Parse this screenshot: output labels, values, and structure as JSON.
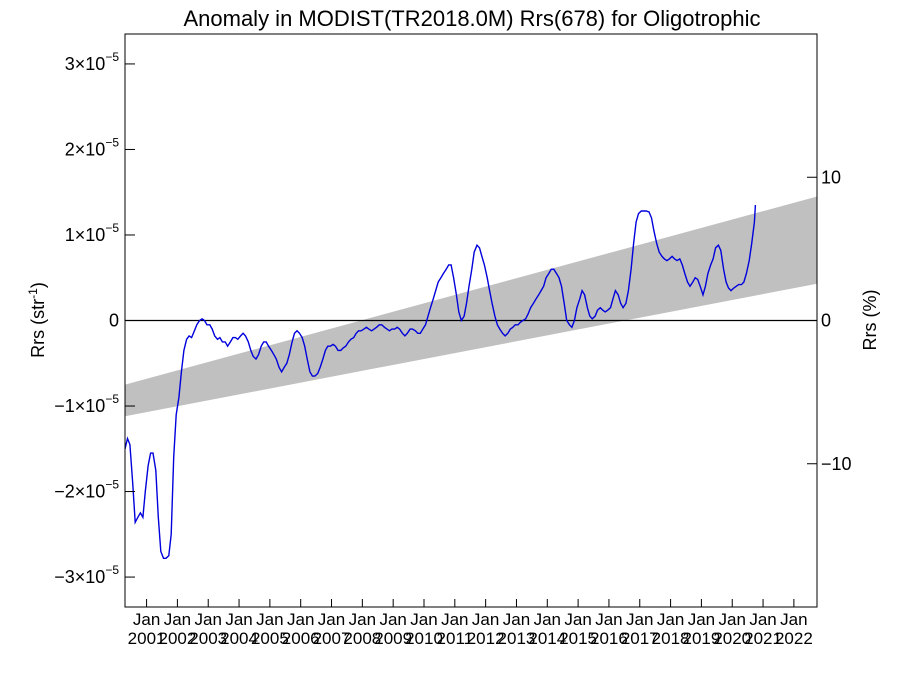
{
  "chart_data": {
    "type": "line",
    "title": "Anomaly in MODIST(TR2018.0M) Rrs(678) for Oligotrophic",
    "ylabel_left": "Rrs (str",
    "ylabel_left_sup": "-1",
    "ylabel_left_close": ")",
    "ylabel_right": "Rrs (%)",
    "xlim": [
      2000.3,
      2022.75
    ],
    "ylim": [
      -3.35e-05,
      3.35e-05
    ],
    "y2lim": [
      -20.0,
      20.0
    ],
    "yticks": [
      {
        "value": 3e-05,
        "mant": "3×10",
        "exp": "−5"
      },
      {
        "value": 2e-05,
        "mant": "2×10",
        "exp": "−5"
      },
      {
        "value": 1e-05,
        "mant": "1×10",
        "exp": "−5"
      },
      {
        "value": 0,
        "mant": "0",
        "exp": ""
      },
      {
        "value": -1e-05,
        "mant": "−1×10",
        "exp": "−5"
      },
      {
        "value": -2e-05,
        "mant": "−2×10",
        "exp": "−5"
      },
      {
        "value": -3e-05,
        "mant": "−3×10",
        "exp": "−5"
      }
    ],
    "y2ticks": [
      {
        "value": 10,
        "label": "10"
      },
      {
        "value": 0,
        "label": "0"
      },
      {
        "value": -10,
        "label": "−10"
      }
    ],
    "xticks": [
      {
        "x": 2001,
        "month": "Jan",
        "year": "2001"
      },
      {
        "x": 2002,
        "month": "Jan",
        "year": "2002"
      },
      {
        "x": 2003,
        "month": "Jan",
        "year": "2003"
      },
      {
        "x": 2004,
        "month": "Jan",
        "year": "2004"
      },
      {
        "x": 2005,
        "month": "Jan",
        "year": "2005"
      },
      {
        "x": 2006,
        "month": "Jan",
        "year": "2006"
      },
      {
        "x": 2007,
        "month": "Jan",
        "year": "2007"
      },
      {
        "x": 2008,
        "month": "Jan",
        "year": "2008"
      },
      {
        "x": 2009,
        "month": "Jan",
        "year": "2009"
      },
      {
        "x": 2010,
        "month": "Jan",
        "year": "2010"
      },
      {
        "x": 2011,
        "month": "Jan",
        "year": "2011"
      },
      {
        "x": 2012,
        "month": "Jan",
        "year": "2012"
      },
      {
        "x": 2013,
        "month": "Jan",
        "year": "2013"
      },
      {
        "x": 2014,
        "month": "Jan",
        "year": "2014"
      },
      {
        "x": 2015,
        "month": "Jan",
        "year": "2015"
      },
      {
        "x": 2016,
        "month": "Jan",
        "year": "2016"
      },
      {
        "x": 2017,
        "month": "Jan",
        "year": "2017"
      },
      {
        "x": 2018,
        "month": "Jan",
        "year": "2018"
      },
      {
        "x": 2019,
        "month": "Jan",
        "year": "2019"
      },
      {
        "x": 2020,
        "month": "Jan",
        "year": "2020"
      },
      {
        "x": 2021,
        "month": "Jan",
        "year": "2021"
      },
      {
        "x": 2022,
        "month": "Jan",
        "year": "2022"
      }
    ],
    "trend_band": {
      "x": [
        2000.3,
        2022.75
      ],
      "upper": [
        -7.5e-06,
        1.45e-05
      ],
      "lower": [
        -1.12e-05,
        4.3e-06
      ],
      "color": "#c0c0c0"
    },
    "zero_line": true,
    "series": [
      {
        "color": "#0000dd",
        "points": [
          [
            2000.3,
            -1.5e-05
          ],
          [
            2000.38,
            -1.38e-05
          ],
          [
            2000.46,
            -1.45e-05
          ],
          [
            2000.55,
            -1.9e-05
          ],
          [
            2000.63,
            -2.36e-05
          ],
          [
            2000.72,
            -2.3e-05
          ],
          [
            2000.8,
            -2.25e-05
          ],
          [
            2000.88,
            -2.3e-05
          ],
          [
            2000.96,
            -2e-05
          ],
          [
            2001.05,
            -1.7e-05
          ],
          [
            2001.13,
            -1.55e-05
          ],
          [
            2001.21,
            -1.55e-05
          ],
          [
            2001.3,
            -1.75e-05
          ],
          [
            2001.38,
            -2.3e-05
          ],
          [
            2001.46,
            -2.7e-05
          ],
          [
            2001.55,
            -2.78e-05
          ],
          [
            2001.63,
            -2.78e-05
          ],
          [
            2001.72,
            -2.75e-05
          ],
          [
            2001.8,
            -2.5e-05
          ],
          [
            2001.88,
            -1.6e-05
          ],
          [
            2001.96,
            -1.1e-05
          ],
          [
            2002.05,
            -9e-06
          ],
          [
            2002.13,
            -6e-06
          ],
          [
            2002.21,
            -3.5e-06
          ],
          [
            2002.3,
            -2.2e-06
          ],
          [
            2002.38,
            -1.8e-06
          ],
          [
            2002.46,
            -2e-06
          ],
          [
            2002.55,
            -1.2e-06
          ],
          [
            2002.63,
            -5e-07
          ],
          [
            2002.72,
            0.0
          ],
          [
            2002.8,
            2e-07
          ],
          [
            2002.88,
            0.0
          ],
          [
            2002.96,
            -5e-07
          ],
          [
            2003.05,
            -5e-07
          ],
          [
            2003.13,
            -1e-06
          ],
          [
            2003.21,
            -1.8e-06
          ],
          [
            2003.3,
            -2.2e-06
          ],
          [
            2003.38,
            -2e-06
          ],
          [
            2003.46,
            -2.5e-06
          ],
          [
            2003.55,
            -2.5e-06
          ],
          [
            2003.63,
            -3e-06
          ],
          [
            2003.72,
            -2.5e-06
          ],
          [
            2003.8,
            -2e-06
          ],
          [
            2003.88,
            -2e-06
          ],
          [
            2003.96,
            -2.2e-06
          ],
          [
            2004.05,
            -1.8e-06
          ],
          [
            2004.13,
            -1.5e-06
          ],
          [
            2004.21,
            -1.8e-06
          ],
          [
            2004.3,
            -2.5e-06
          ],
          [
            2004.38,
            -3.5e-06
          ],
          [
            2004.46,
            -4.2e-06
          ],
          [
            2004.55,
            -4.5e-06
          ],
          [
            2004.63,
            -4e-06
          ],
          [
            2004.72,
            -3e-06
          ],
          [
            2004.8,
            -2.5e-06
          ],
          [
            2004.88,
            -2.5e-06
          ],
          [
            2004.96,
            -3e-06
          ],
          [
            2005.05,
            -3.5e-06
          ],
          [
            2005.13,
            -4e-06
          ],
          [
            2005.21,
            -4.5e-06
          ],
          [
            2005.3,
            -5.5e-06
          ],
          [
            2005.38,
            -6e-06
          ],
          [
            2005.46,
            -5.5e-06
          ],
          [
            2005.55,
            -5e-06
          ],
          [
            2005.63,
            -4e-06
          ],
          [
            2005.72,
            -2.5e-06
          ],
          [
            2005.8,
            -1.5e-06
          ],
          [
            2005.88,
            -1.2e-06
          ],
          [
            2005.96,
            -1.5e-06
          ],
          [
            2006.05,
            -2e-06
          ],
          [
            2006.13,
            -3e-06
          ],
          [
            2006.21,
            -4.5e-06
          ],
          [
            2006.3,
            -6e-06
          ],
          [
            2006.38,
            -6.5e-06
          ],
          [
            2006.46,
            -6.5e-06
          ],
          [
            2006.55,
            -6.2e-06
          ],
          [
            2006.63,
            -5.5e-06
          ],
          [
            2006.72,
            -4.5e-06
          ],
          [
            2006.8,
            -3.5e-06
          ],
          [
            2006.88,
            -3e-06
          ],
          [
            2006.96,
            -3e-06
          ],
          [
            2007.05,
            -2.8e-06
          ],
          [
            2007.13,
            -3e-06
          ],
          [
            2007.21,
            -3.5e-06
          ],
          [
            2007.3,
            -3.5e-06
          ],
          [
            2007.38,
            -3.2e-06
          ],
          [
            2007.46,
            -3e-06
          ],
          [
            2007.55,
            -2.5e-06
          ],
          [
            2007.63,
            -2.2e-06
          ],
          [
            2007.72,
            -2e-06
          ],
          [
            2007.8,
            -1.5e-06
          ],
          [
            2007.88,
            -1.2e-06
          ],
          [
            2007.96,
            -1.2e-06
          ],
          [
            2008.05,
            -1e-06
          ],
          [
            2008.13,
            -8e-07
          ],
          [
            2008.21,
            -1e-06
          ],
          [
            2008.3,
            -1.2e-06
          ],
          [
            2008.38,
            -1e-06
          ],
          [
            2008.46,
            -8e-07
          ],
          [
            2008.55,
            -5e-07
          ],
          [
            2008.63,
            -5e-07
          ],
          [
            2008.72,
            -8e-07
          ],
          [
            2008.8,
            -1e-06
          ],
          [
            2008.88,
            -1.2e-06
          ],
          [
            2008.96,
            -1e-06
          ],
          [
            2009.05,
            -1e-06
          ],
          [
            2009.13,
            -8e-07
          ],
          [
            2009.21,
            -1e-06
          ],
          [
            2009.3,
            -1.5e-06
          ],
          [
            2009.38,
            -1.8e-06
          ],
          [
            2009.46,
            -1.5e-06
          ],
          [
            2009.55,
            -1e-06
          ],
          [
            2009.63,
            -1e-06
          ],
          [
            2009.72,
            -1.2e-06
          ],
          [
            2009.8,
            -1.5e-06
          ],
          [
            2009.88,
            -1.5e-06
          ],
          [
            2009.96,
            -1e-06
          ],
          [
            2010.05,
            -5e-07
          ],
          [
            2010.13,
            5e-07
          ],
          [
            2010.21,
            1.5e-06
          ],
          [
            2010.3,
            2.5e-06
          ],
          [
            2010.38,
            3.5e-06
          ],
          [
            2010.46,
            4.5e-06
          ],
          [
            2010.55,
            5e-06
          ],
          [
            2010.63,
            5.5e-06
          ],
          [
            2010.72,
            6e-06
          ],
          [
            2010.8,
            6.5e-06
          ],
          [
            2010.88,
            6.5e-06
          ],
          [
            2010.96,
            5e-06
          ],
          [
            2011.05,
            3e-06
          ],
          [
            2011.13,
            1e-06
          ],
          [
            2011.21,
            0.0
          ],
          [
            2011.3,
            5e-07
          ],
          [
            2011.38,
            2e-06
          ],
          [
            2011.46,
            4e-06
          ],
          [
            2011.55,
            6e-06
          ],
          [
            2011.63,
            8e-06
          ],
          [
            2011.72,
            8.8e-06
          ],
          [
            2011.8,
            8.5e-06
          ],
          [
            2011.88,
            7.5e-06
          ],
          [
            2011.96,
            6.5e-06
          ],
          [
            2012.05,
            5e-06
          ],
          [
            2012.13,
            3.5e-06
          ],
          [
            2012.21,
            2e-06
          ],
          [
            2012.3,
            5e-07
          ],
          [
            2012.38,
            -5e-07
          ],
          [
            2012.46,
            -1e-06
          ],
          [
            2012.55,
            -1.5e-06
          ],
          [
            2012.63,
            -1.8e-06
          ],
          [
            2012.72,
            -1.5e-06
          ],
          [
            2012.8,
            -1e-06
          ],
          [
            2012.88,
            -8e-07
          ],
          [
            2012.96,
            -5e-07
          ],
          [
            2013.05,
            -5e-07
          ],
          [
            2013.13,
            -2e-07
          ],
          [
            2013.21,
            0.0
          ],
          [
            2013.3,
            2e-07
          ],
          [
            2013.38,
            8e-07
          ],
          [
            2013.46,
            1.5e-06
          ],
          [
            2013.55,
            2e-06
          ],
          [
            2013.63,
            2.5e-06
          ],
          [
            2013.72,
            3e-06
          ],
          [
            2013.8,
            3.5e-06
          ],
          [
            2013.88,
            4e-06
          ],
          [
            2013.96,
            5e-06
          ],
          [
            2014.05,
            5.5e-06
          ],
          [
            2014.13,
            6e-06
          ],
          [
            2014.21,
            6e-06
          ],
          [
            2014.3,
            5.5e-06
          ],
          [
            2014.38,
            5e-06
          ],
          [
            2014.46,
            4e-06
          ],
          [
            2014.55,
            2e-06
          ],
          [
            2014.63,
            0.0
          ],
          [
            2014.72,
            -5e-07
          ],
          [
            2014.8,
            -8e-07
          ],
          [
            2014.88,
            0.0
          ],
          [
            2014.96,
            1.5e-06
          ],
          [
            2015.05,
            2.5e-06
          ],
          [
            2015.13,
            3.5e-06
          ],
          [
            2015.21,
            3e-06
          ],
          [
            2015.3,
            1.5e-06
          ],
          [
            2015.38,
            5e-07
          ],
          [
            2015.46,
            2e-07
          ],
          [
            2015.55,
            5e-07
          ],
          [
            2015.63,
            1.2e-06
          ],
          [
            2015.72,
            1.5e-06
          ],
          [
            2015.8,
            1.2e-06
          ],
          [
            2015.88,
            1e-06
          ],
          [
            2015.96,
            1.2e-06
          ],
          [
            2016.05,
            1.5e-06
          ],
          [
            2016.13,
            2.5e-06
          ],
          [
            2016.21,
            3.5e-06
          ],
          [
            2016.3,
            3e-06
          ],
          [
            2016.38,
            2e-06
          ],
          [
            2016.46,
            1.5e-06
          ],
          [
            2016.55,
            2e-06
          ],
          [
            2016.63,
            3.5e-06
          ],
          [
            2016.72,
            6e-06
          ],
          [
            2016.8,
            9e-06
          ],
          [
            2016.88,
            1.15e-05
          ],
          [
            2016.96,
            1.25e-05
          ],
          [
            2017.05,
            1.28e-05
          ],
          [
            2017.13,
            1.28e-05
          ],
          [
            2017.21,
            1.28e-05
          ],
          [
            2017.3,
            1.27e-05
          ],
          [
            2017.38,
            1.2e-05
          ],
          [
            2017.46,
            1.05e-05
          ],
          [
            2017.55,
            9e-06
          ],
          [
            2017.63,
            8e-06
          ],
          [
            2017.72,
            7.5e-06
          ],
          [
            2017.8,
            7.2e-06
          ],
          [
            2017.88,
            7e-06
          ],
          [
            2017.96,
            7.2e-06
          ],
          [
            2018.05,
            7.5e-06
          ],
          [
            2018.13,
            7.2e-06
          ],
          [
            2018.21,
            7e-06
          ],
          [
            2018.3,
            7.2e-06
          ],
          [
            2018.38,
            6.5e-06
          ],
          [
            2018.46,
            5.5e-06
          ],
          [
            2018.55,
            4.5e-06
          ],
          [
            2018.63,
            4e-06
          ],
          [
            2018.72,
            4.5e-06
          ],
          [
            2018.8,
            5e-06
          ],
          [
            2018.88,
            4.8e-06
          ],
          [
            2018.96,
            4e-06
          ],
          [
            2019.05,
            3e-06
          ],
          [
            2019.13,
            4e-06
          ],
          [
            2019.21,
            5.5e-06
          ],
          [
            2019.3,
            6.5e-06
          ],
          [
            2019.38,
            7.2e-06
          ],
          [
            2019.46,
            8.5e-06
          ],
          [
            2019.55,
            8.8e-06
          ],
          [
            2019.63,
            8.2e-06
          ],
          [
            2019.72,
            6e-06
          ],
          [
            2019.8,
            4.5e-06
          ],
          [
            2019.88,
            3.8e-06
          ],
          [
            2019.96,
            3.5e-06
          ],
          [
            2020.05,
            3.8e-06
          ],
          [
            2020.13,
            4e-06
          ],
          [
            2020.21,
            4.2e-06
          ],
          [
            2020.3,
            4.2e-06
          ],
          [
            2020.38,
            4.5e-06
          ],
          [
            2020.46,
            5.5e-06
          ],
          [
            2020.55,
            7e-06
          ],
          [
            2020.63,
            9e-06
          ],
          [
            2020.72,
            1.15e-05
          ],
          [
            2020.75,
            1.35e-05
          ]
        ]
      }
    ]
  }
}
